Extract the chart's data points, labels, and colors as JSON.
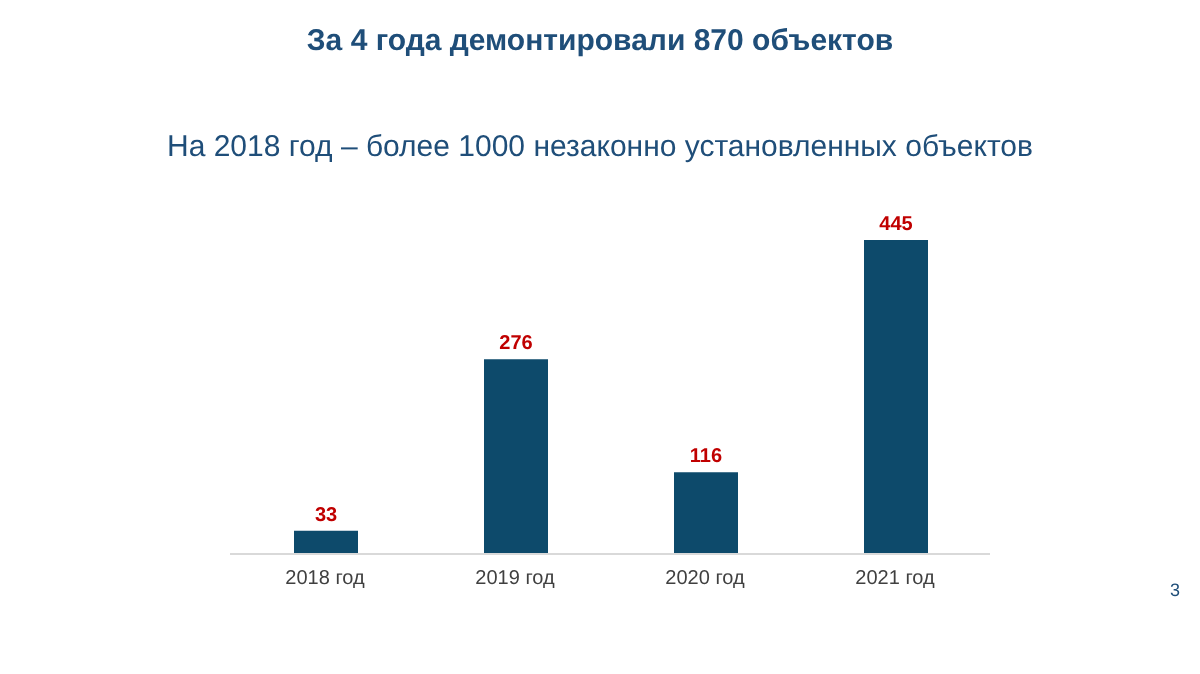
{
  "chart_data": {
    "type": "bar",
    "title": "За 4 года демонтировали 870 объектов",
    "subtitle": "На 2018 год – более 1000 незаконно установленных объектов",
    "categories": [
      "2018 год",
      "2019 год",
      "2020 год",
      "2021 год"
    ],
    "values": [
      33,
      276,
      116,
      445
    ],
    "color": "#0d4a6b",
    "data_labels": true,
    "annotations": [
      "3"
    ]
  }
}
